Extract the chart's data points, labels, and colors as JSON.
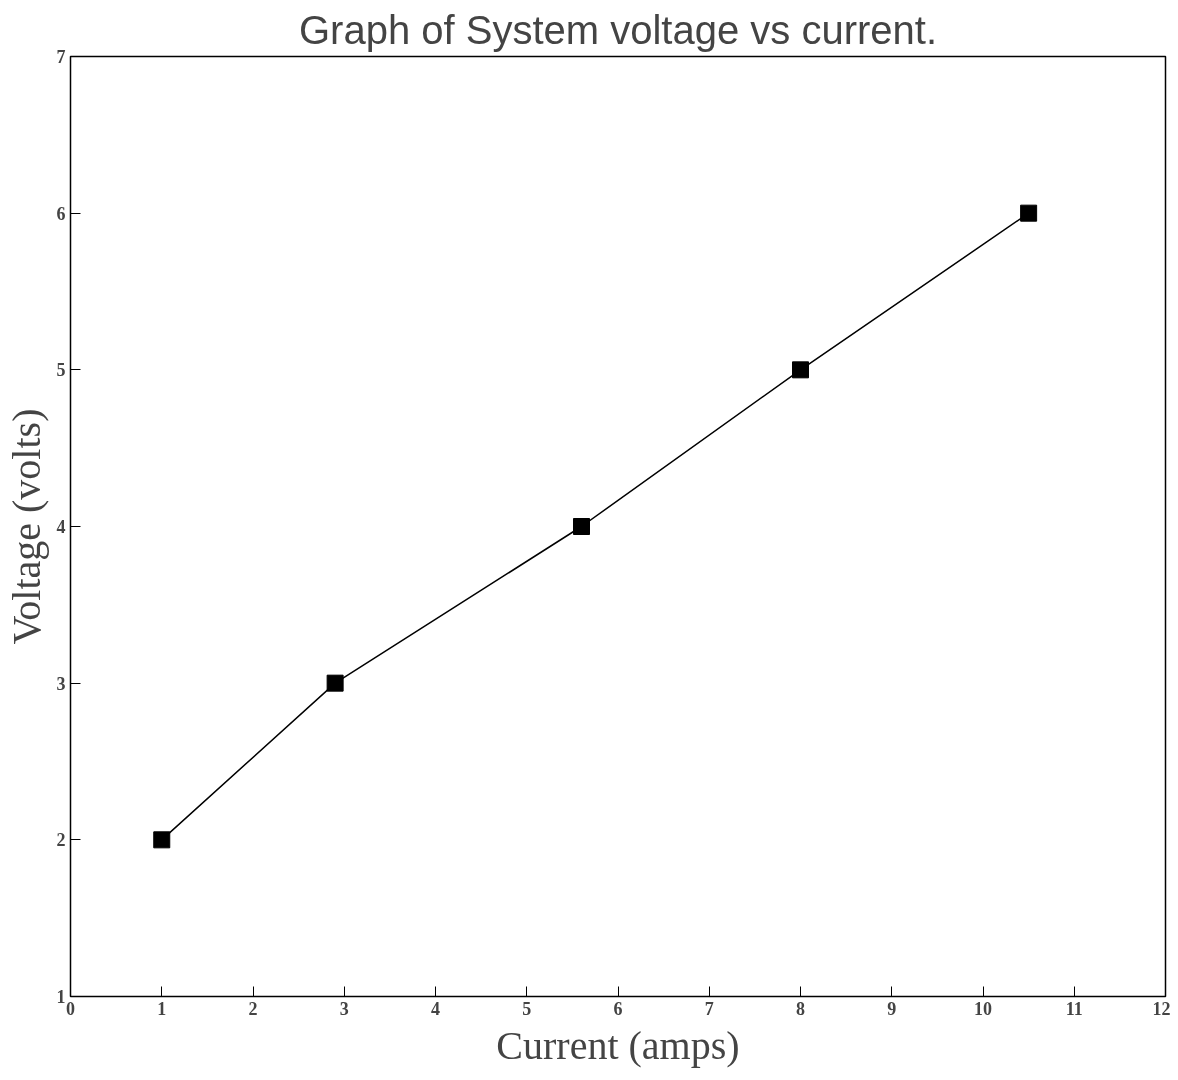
{
  "chart_data": {
    "type": "line",
    "title": "Graph of System voltage vs current.",
    "xlabel": "Current (amps)",
    "ylabel": "Voltage (volts)",
    "x": [
      1.0,
      2.9,
      5.6,
      8.0,
      10.5
    ],
    "series": [
      {
        "color": "#000000",
        "values": [
          2,
          3,
          4,
          5,
          6
        ]
      }
    ],
    "xlim": [
      0,
      12
    ],
    "ylim": [
      1,
      7
    ],
    "xticks": [
      0,
      1,
      2,
      3,
      4,
      5,
      6,
      7,
      8,
      9,
      10,
      11,
      12
    ],
    "yticks": [
      1,
      2,
      3,
      4,
      5,
      6,
      7
    ],
    "grid": false,
    "marker": "square",
    "line_style": "solid"
  }
}
